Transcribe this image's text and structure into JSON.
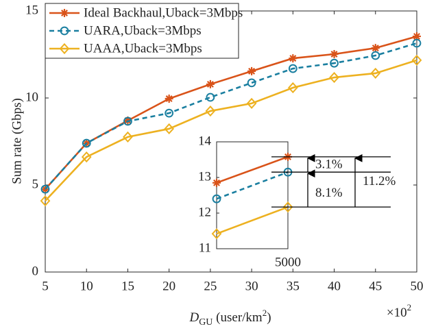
{
  "chart_data": {
    "type": "line",
    "xlabel": {
      "main": "D",
      "sub": "GU",
      "rest": " (user/km",
      "sup": "2",
      "end": ")"
    },
    "ylabel": "Sum rate (Gbps)",
    "x_multiplier": {
      "base": "×10",
      "exp": "2"
    },
    "x": [
      5,
      10,
      15,
      20,
      25,
      30,
      35,
      40,
      45,
      50
    ],
    "xlim": [
      5,
      50
    ],
    "xticks": [
      5,
      10,
      15,
      20,
      25,
      30,
      35,
      40,
      45,
      50
    ],
    "ylim": [
      0,
      15
    ],
    "yticks": [
      0,
      5,
      10,
      15
    ],
    "legend_position": "upper left",
    "series": [
      {
        "name": "Ideal Backhaul,Uback=3Mbps",
        "color": "#d95319",
        "marker": "star",
        "dash": false,
        "values": [
          4.76,
          7.4,
          8.7,
          9.96,
          10.79,
          11.54,
          12.28,
          12.52,
          12.87,
          13.54
        ]
      },
      {
        "name": "UARA,Uback=3Mbps",
        "color": "#1a7fa0",
        "marker": "circle",
        "dash": true,
        "values": [
          4.76,
          7.4,
          8.66,
          9.13,
          10.04,
          10.87,
          11.69,
          12.0,
          12.44,
          13.15
        ]
      },
      {
        "name": "UAAA,Uback=3Mbps",
        "color": "#edb120",
        "marker": "diamond",
        "dash": false,
        "values": [
          4.09,
          6.61,
          7.76,
          8.23,
          9.25,
          9.69,
          10.59,
          11.18,
          11.42,
          12.17
        ]
      }
    ],
    "inset": {
      "x": [
        4500,
        5000
      ],
      "xlim": [
        4500,
        5000
      ],
      "xticks": [
        5000
      ],
      "ylim": [
        11,
        14
      ],
      "yticks": [
        11,
        12,
        13,
        14
      ],
      "series": [
        {
          "values": [
            12.85,
            13.58
          ]
        },
        {
          "values": [
            12.4,
            13.15
          ]
        },
        {
          "values": [
            11.42,
            12.17
          ]
        }
      ],
      "annotations": [
        "3.1%",
        "8.1%",
        "11.2%"
      ]
    }
  }
}
